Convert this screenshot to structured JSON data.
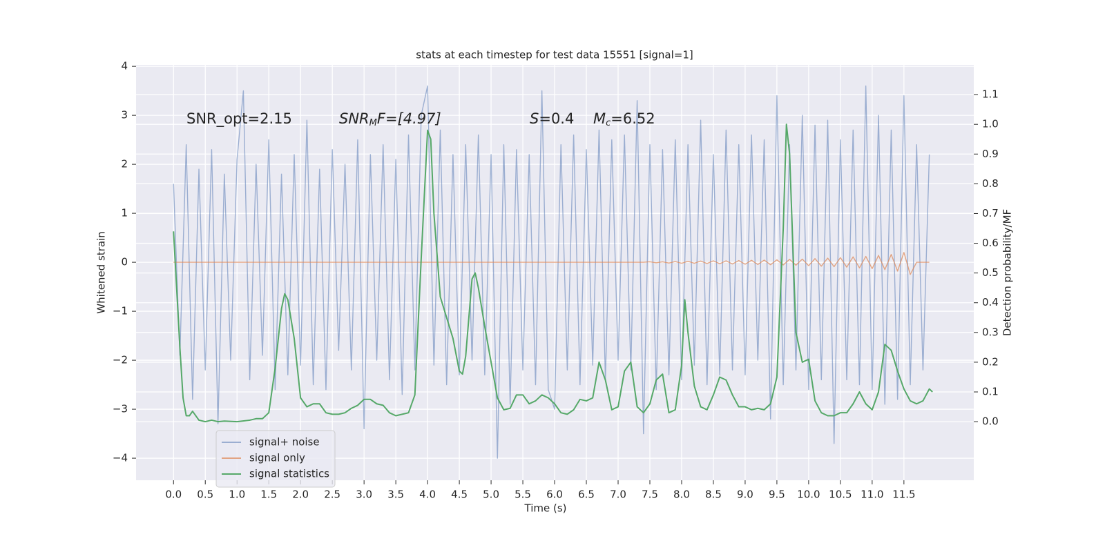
{
  "chart_data": {
    "type": "line",
    "title": "stats at each timestep for test data 15551 [signal=1]",
    "xlabel": "Time (s)",
    "ylabel": "Whitened strain",
    "y2label": "Detection probability/MF",
    "annotations": [
      {
        "base": "SNR_opt=2.15"
      },
      {
        "base": "SNR",
        "sub": "M",
        "rest": "F=[4.97]"
      },
      {
        "base": "S",
        "rest": "=0.4"
      },
      {
        "base": "M",
        "sub": "c",
        "rest": "=6.52"
      }
    ],
    "legend": "lower left",
    "grid": true,
    "xlim": [
      -0.59,
      12.6
    ],
    "ylim": [
      -4.45,
      4.03
    ],
    "y2lim": [
      -0.197,
      1.2
    ],
    "xticks": [
      {
        "value": 0,
        "label": "0.0"
      },
      0.5,
      {
        "value": 1,
        "label": "1.0"
      },
      1.5,
      {
        "value": 2,
        "label": "2.0"
      },
      2.5,
      {
        "value": 3,
        "label": "3.0"
      },
      3.5,
      {
        "value": 4,
        "label": "4.0"
      },
      4.5,
      {
        "value": 5,
        "label": "5.0"
      },
      5.5,
      {
        "value": 6,
        "label": "6.0"
      },
      6.5,
      {
        "value": 7,
        "label": "7.0"
      },
      7.5,
      {
        "value": 8,
        "label": "8.0"
      },
      8.5,
      {
        "value": 9,
        "label": "9.0"
      },
      9.5,
      {
        "value": 10,
        "label": "10.0"
      },
      10.5,
      {
        "value": 11,
        "label": "11.0"
      },
      11.5
    ],
    "yticks": [
      {
        "value": -4,
        "label": "−4"
      },
      {
        "value": -3,
        "label": "−3"
      },
      {
        "value": -2,
        "label": "−2"
      },
      {
        "value": -1,
        "label": "−1"
      },
      0,
      1,
      2,
      3,
      4
    ],
    "y2ticks": [
      {
        "value": 0,
        "label": "0.0"
      },
      0.1,
      0.2,
      0.3,
      0.4,
      0.5,
      0.6,
      0.7,
      0.8,
      0.9,
      {
        "value": 1,
        "label": "1.0"
      },
      1.1
    ],
    "x": [
      0,
      0.1,
      0.2,
      0.3,
      0.4,
      0.5,
      0.6,
      0.7,
      0.8,
      0.9,
      1,
      1.1,
      1.2,
      1.3,
      1.4,
      1.5,
      1.6,
      1.7,
      1.8,
      1.9,
      2,
      2.1,
      2.2,
      2.3,
      2.4,
      2.5,
      2.6,
      2.7,
      2.8,
      2.9,
      3,
      3.1,
      3.2,
      3.3,
      3.4,
      3.5,
      3.6,
      3.7,
      3.8,
      3.9,
      4,
      4.1,
      4.2,
      4.3,
      4.4,
      4.5,
      4.6,
      4.7,
      4.8,
      4.9,
      5,
      5.1,
      5.2,
      5.3,
      5.4,
      5.5,
      5.6,
      5.7,
      5.8,
      5.9,
      6,
      6.1,
      6.2,
      6.3,
      6.4,
      6.5,
      6.6,
      6.7,
      6.8,
      6.9,
      7,
      7.1,
      7.2,
      7.3,
      7.4,
      7.5,
      7.6,
      7.7,
      7.8,
      7.9,
      8,
      8.1,
      8.2,
      8.3,
      8.4,
      8.5,
      8.6,
      8.7,
      8.8,
      8.9,
      9,
      9.1,
      9.2,
      9.3,
      9.4,
      9.5,
      9.6,
      9.7,
      9.8,
      9.9,
      10,
      10.1,
      10.2,
      10.3,
      10.4,
      10.5,
      10.6,
      10.7,
      10.8,
      10.9,
      11,
      11.1,
      11.2,
      11.3,
      11.4,
      11.5,
      11.6,
      11.7,
      11.8,
      11.9
    ],
    "series": [
      {
        "name": "signal+ noise",
        "color": "#4c72b0",
        "opacity": 0.5,
        "values": [
          1.6,
          -1.9,
          2.4,
          -2.8,
          1.9,
          -2.2,
          2.3,
          -3.3,
          1.8,
          -2.0,
          2.1,
          3.5,
          -2.4,
          2.0,
          -1.9,
          2.5,
          -2.6,
          1.8,
          -2.3,
          2.2,
          -2.1,
          2.9,
          -2.5,
          1.9,
          -2.6,
          2.3,
          -1.8,
          2.0,
          -2.2,
          2.5,
          -3.4,
          2.2,
          -2.0,
          2.4,
          -2.4,
          2.1,
          -2.7,
          2.6,
          -2.2,
          3.0,
          3.6,
          -2.1,
          2.7,
          -2.5,
          2.2,
          -2.3,
          2.4,
          -2.0,
          2.6,
          -2.3,
          2.2,
          -4.0,
          2.4,
          -2.9,
          2.3,
          -2.2,
          2.2,
          -2.5,
          3.5,
          -2.6,
          -3.0,
          2.4,
          -2.2,
          2.6,
          -2.5,
          2.3,
          -2.1,
          2.7,
          -2.4,
          2.5,
          -2.0,
          2.6,
          -2.2,
          3.3,
          -3.5,
          2.4,
          -2.6,
          2.3,
          -2.3,
          2.5,
          -2.4,
          2.4,
          -2.1,
          2.9,
          -2.5,
          2.2,
          -2.3,
          2.7,
          -2.2,
          2.4,
          -2.3,
          2.6,
          -2.0,
          2.5,
          -3.2,
          3.4,
          -2.5,
          2.4,
          -2.2,
          3.0,
          -2.6,
          2.8,
          -2.4,
          2.9,
          -3.7,
          2.5,
          -2.4,
          2.7,
          -2.5,
          3.6,
          -2.6,
          3.0,
          -2.9,
          2.7,
          -2.8,
          3.4,
          -2.5,
          2.4,
          -2.2,
          2.2
        ]
      },
      {
        "name": "signal only",
        "color": "#dd8452",
        "opacity": 0.7,
        "values": [
          0,
          0,
          0,
          0,
          0,
          0,
          0,
          0,
          0,
          0,
          0,
          0,
          0,
          0,
          0,
          0,
          0,
          0,
          0,
          0,
          0,
          0,
          0,
          0,
          0,
          0,
          0,
          0,
          0,
          0,
          0,
          0,
          0,
          0,
          0,
          0,
          0,
          0,
          0,
          0,
          0,
          0,
          0,
          0,
          0,
          0,
          0,
          0,
          0,
          0,
          0,
          0,
          0,
          0,
          0,
          0,
          0,
          0,
          0,
          0,
          0,
          0,
          0,
          0,
          0,
          0,
          0,
          0,
          0,
          0,
          0,
          0,
          0,
          0,
          0,
          0.01,
          -0.01,
          0.01,
          -0.015,
          0.015,
          -0.02,
          0.02,
          -0.02,
          0.025,
          -0.025,
          0.03,
          -0.03,
          0.03,
          -0.035,
          0.035,
          -0.04,
          0.04,
          -0.045,
          0.045,
          -0.05,
          0.05,
          -0.055,
          0.06,
          -0.06,
          0.065,
          -0.07,
          0.075,
          -0.08,
          0.085,
          -0.09,
          0.095,
          -0.1,
          0.11,
          -0.115,
          0.12,
          -0.13,
          0.14,
          -0.15,
          0.16,
          -0.18,
          0.2,
          -0.25,
          0,
          0,
          0
        ]
      },
      {
        "name": "signal statistics",
        "color": "#55a868",
        "opacity": 1,
        "axis": "y2",
        "x": [
          0,
          0.1,
          0.15,
          0.2,
          0.25,
          0.3,
          0.4,
          0.5,
          0.6,
          0.7,
          0.8,
          1.0,
          1.2,
          1.3,
          1.4,
          1.5,
          1.6,
          1.7,
          1.75,
          1.8,
          1.9,
          2.0,
          2.1,
          2.2,
          2.3,
          2.4,
          2.5,
          2.6,
          2.7,
          2.8,
          2.9,
          3.0,
          3.1,
          3.2,
          3.3,
          3.4,
          3.5,
          3.6,
          3.7,
          3.8,
          3.9,
          4.0,
          4.05,
          4.1,
          4.2,
          4.3,
          4.4,
          4.5,
          4.55,
          4.6,
          4.7,
          4.75,
          4.8,
          4.9,
          5.0,
          5.1,
          5.2,
          5.3,
          5.4,
          5.5,
          5.6,
          5.7,
          5.8,
          5.9,
          6.0,
          6.1,
          6.2,
          6.3,
          6.4,
          6.5,
          6.6,
          6.7,
          6.8,
          6.9,
          7.0,
          7.1,
          7.2,
          7.3,
          7.4,
          7.5,
          7.6,
          7.7,
          7.8,
          7.9,
          8.0,
          8.05,
          8.1,
          8.2,
          8.3,
          8.4,
          8.5,
          8.6,
          8.7,
          8.8,
          8.9,
          9.0,
          9.1,
          9.2,
          9.3,
          9.4,
          9.5,
          9.6,
          9.65,
          9.7,
          9.8,
          9.9,
          10.0,
          10.1,
          10.2,
          10.3,
          10.4,
          10.5,
          10.6,
          10.7,
          10.8,
          10.9,
          11.0,
          11.1,
          11.2,
          11.3,
          11.4,
          11.5,
          11.6,
          11.7,
          11.8,
          11.9,
          11.95
        ],
        "values": [
          0.64,
          0.25,
          0.08,
          0.02,
          0.02,
          0.035,
          0.005,
          0.0,
          0.005,
          0.0,
          0.002,
          0.0,
          0.005,
          0.01,
          0.01,
          0.03,
          0.18,
          0.38,
          0.43,
          0.41,
          0.28,
          0.08,
          0.05,
          0.06,
          0.06,
          0.03,
          0.025,
          0.025,
          0.03,
          0.045,
          0.055,
          0.075,
          0.075,
          0.06,
          0.055,
          0.03,
          0.02,
          0.025,
          0.03,
          0.09,
          0.55,
          0.98,
          0.95,
          0.7,
          0.42,
          0.35,
          0.28,
          0.17,
          0.16,
          0.22,
          0.48,
          0.5,
          0.45,
          0.32,
          0.2,
          0.08,
          0.04,
          0.045,
          0.09,
          0.09,
          0.06,
          0.07,
          0.09,
          0.08,
          0.06,
          0.03,
          0.025,
          0.04,
          0.075,
          0.07,
          0.08,
          0.2,
          0.14,
          0.04,
          0.05,
          0.17,
          0.2,
          0.05,
          0.03,
          0.06,
          0.14,
          0.16,
          0.03,
          0.04,
          0.19,
          0.41,
          0.3,
          0.12,
          0.05,
          0.04,
          0.09,
          0.15,
          0.14,
          0.09,
          0.05,
          0.05,
          0.04,
          0.045,
          0.04,
          0.06,
          0.15,
          0.65,
          1.0,
          0.9,
          0.3,
          0.2,
          0.21,
          0.07,
          0.03,
          0.02,
          0.02,
          0.03,
          0.03,
          0.06,
          0.1,
          0.06,
          0.04,
          0.1,
          0.26,
          0.24,
          0.17,
          0.11,
          0.07,
          0.06,
          0.07,
          0.11,
          0.1
        ]
      }
    ]
  }
}
